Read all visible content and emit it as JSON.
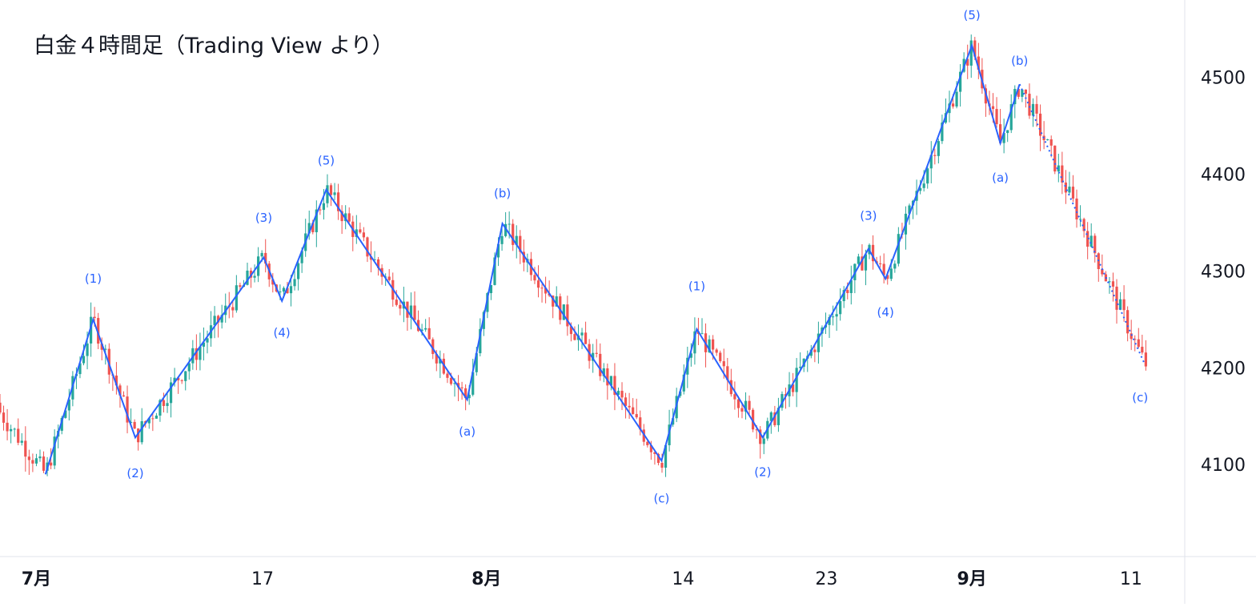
{
  "title": "白金４時間足（Trading View より）",
  "colors": {
    "up": "#26a69a",
    "down": "#ef5350",
    "wave": "#2962ff",
    "wave_label": "#2962ff",
    "text": "#131722",
    "axis_line": "#e0e3eb",
    "background": "#ffffff"
  },
  "chart_data": {
    "type": "candlestick",
    "title": "白金４時間足（Trading View より）",
    "y_axis": {
      "position": "right",
      "ticks": [
        4100,
        4200,
        4300,
        4400,
        4500
      ],
      "range": [
        4005,
        4580
      ]
    },
    "x_axis": {
      "range": [
        0,
        1000
      ],
      "ticks": [
        {
          "label": "7月",
          "x": 32,
          "bold": true
        },
        {
          "label": "17",
          "x": 231,
          "bold": false
        },
        {
          "label": "8月",
          "x": 428,
          "bold": true
        },
        {
          "label": "14",
          "x": 601,
          "bold": false
        },
        {
          "label": "23",
          "x": 727,
          "bold": false
        },
        {
          "label": "9月",
          "x": 855,
          "bold": true
        },
        {
          "label": "11",
          "x": 995,
          "bold": false
        }
      ]
    },
    "wave_lines": [
      {
        "style": "solid",
        "points": [
          [
            40,
            4090
          ],
          [
            82,
            4250
          ],
          [
            119,
            4128
          ],
          [
            232,
            4314
          ],
          [
            248,
            4269
          ],
          [
            287,
            4384
          ],
          [
            411,
            4167
          ],
          [
            442,
            4349
          ],
          [
            582,
            4104
          ],
          [
            613,
            4240
          ],
          [
            671,
            4128
          ],
          [
            764,
            4323
          ],
          [
            779,
            4292
          ],
          [
            855,
            4533
          ],
          [
            880,
            4432
          ],
          [
            897,
            4493
          ]
        ]
      },
      {
        "style": "dotted",
        "points": [
          [
            897,
            4493
          ],
          [
            1007,
            4204
          ]
        ]
      }
    ],
    "wave_labels": [
      {
        "text": "(1)",
        "x": 82,
        "y": 4288
      },
      {
        "text": "(2)",
        "x": 119,
        "y": 4087
      },
      {
        "text": "(3)",
        "x": 232,
        "y": 4351
      },
      {
        "text": "(4)",
        "x": 248,
        "y": 4232
      },
      {
        "text": "(5)",
        "x": 287,
        "y": 4410
      },
      {
        "text": "(a)",
        "x": 411,
        "y": 4130
      },
      {
        "text": "(b)",
        "x": 442,
        "y": 4376
      },
      {
        "text": "(c)",
        "x": 582,
        "y": 4061
      },
      {
        "text": "(1)",
        "x": 613,
        "y": 4280
      },
      {
        "text": "(2)",
        "x": 671,
        "y": 4088
      },
      {
        "text": "(3)",
        "x": 764,
        "y": 4353
      },
      {
        "text": "(4)",
        "x": 779,
        "y": 4253
      },
      {
        "text": "(5)",
        "x": 855,
        "y": 4560
      },
      {
        "text": "(a)",
        "x": 880,
        "y": 4392
      },
      {
        "text": "(b)",
        "x": 897,
        "y": 4513
      },
      {
        "text": "(c)",
        "x": 1003,
        "y": 4165
      }
    ],
    "grid": false,
    "legend": "none"
  }
}
